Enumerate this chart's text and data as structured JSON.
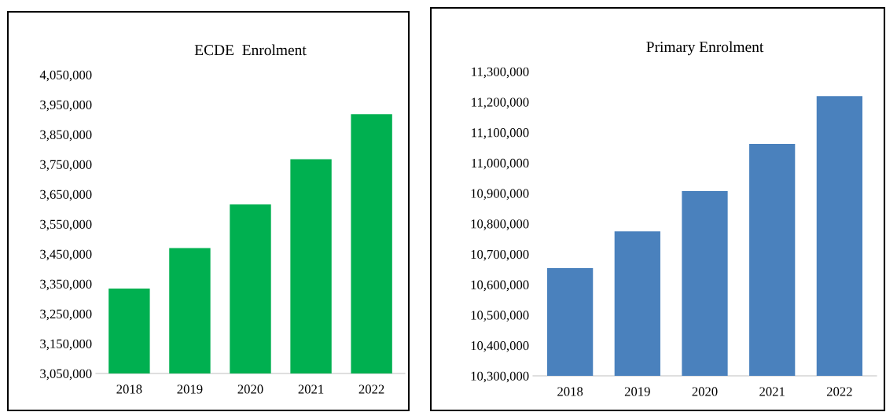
{
  "chart_data": [
    {
      "type": "bar",
      "title": "ECDE  Enrolment",
      "categories": [
        "2018",
        "2019",
        "2020",
        "2021",
        "2022"
      ],
      "series": [
        {
          "color": "#00b050",
          "values": [
            3334000,
            3470000,
            3616000,
            3767000,
            3918000
          ]
        }
      ],
      "ylim": [
        3050000,
        4050000
      ],
      "yticks": [
        {
          "value": 3050000,
          "label": "3,050,000"
        },
        {
          "value": 3150000,
          "label": "3,150,000"
        },
        {
          "value": 3250000,
          "label": "3,250,000"
        },
        {
          "value": 3350000,
          "label": "3,350,000"
        },
        {
          "value": 3450000,
          "label": "3,450,000"
        },
        {
          "value": 3550000,
          "label": "3,550,000"
        },
        {
          "value": 3650000,
          "label": "3,650,000"
        },
        {
          "value": 3750000,
          "label": "3,750,000"
        },
        {
          "value": 3850000,
          "label": "3,850,000"
        },
        {
          "value": 3950000,
          "label": "3,950,000"
        },
        {
          "value": 4050000,
          "label": "4,050,000"
        }
      ],
      "grid": false
    },
    {
      "type": "bar",
      "title": "Primary Enrolment",
      "categories": [
        "2018",
        "2019",
        "2020",
        "2021",
        "2022"
      ],
      "series": [
        {
          "color": "#4a81bd",
          "values": [
            10654000,
            10775000,
            10907000,
            11062000,
            11219000
          ]
        }
      ],
      "ylim": [
        10300000,
        11300000
      ],
      "yticks": [
        {
          "value": 10300000,
          "label": "10,300,000"
        },
        {
          "value": 10400000,
          "label": "10,400,000"
        },
        {
          "value": 10500000,
          "label": "10,500,000"
        },
        {
          "value": 10600000,
          "label": "10,600,000"
        },
        {
          "value": 10700000,
          "label": "10,700,000"
        },
        {
          "value": 10800000,
          "label": "10,800,000"
        },
        {
          "value": 10900000,
          "label": "10,900,000"
        },
        {
          "value": 11000000,
          "label": "11,000,000"
        },
        {
          "value": 11100000,
          "label": "11,100,000"
        },
        {
          "value": 11200000,
          "label": "11,200,000"
        },
        {
          "value": 11300000,
          "label": "11,300,000"
        }
      ],
      "grid": false
    }
  ]
}
